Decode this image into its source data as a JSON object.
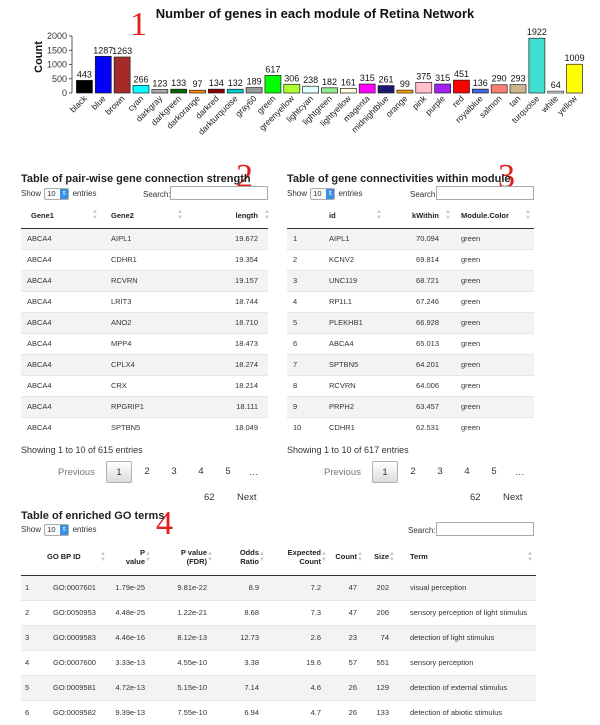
{
  "chart_data": {
    "type": "bar",
    "title": "Number of genes in each module of Retina Network",
    "ylabel": "Count",
    "xlabel": "",
    "ylim": [
      0,
      2000
    ],
    "yticks": [
      0,
      500,
      1000,
      1500,
      2000
    ],
    "categories": [
      "black",
      "blue",
      "brown",
      "cyan",
      "darkgray",
      "darkgreen",
      "darkorange",
      "darkred",
      "darkturquoise",
      "gray60",
      "green",
      "greenyellow",
      "lightcyan",
      "lightgreen",
      "lightyellow",
      "magenta",
      "midnightblue",
      "orange",
      "pink",
      "purple",
      "red",
      "royalblue",
      "salmon",
      "tan",
      "turquoise",
      "white",
      "yellow"
    ],
    "values": [
      443,
      1287,
      1263,
      266,
      123,
      133,
      97,
      134,
      132,
      189,
      617,
      306,
      238,
      182,
      161,
      315,
      261,
      99,
      375,
      315,
      451,
      136,
      290,
      293,
      1922,
      64,
      1009
    ],
    "colors": [
      "#000000",
      "#0000ff",
      "#a52a2a",
      "#00ffff",
      "#a9a9a9",
      "#006400",
      "#ff8c00",
      "#8b0000",
      "#00ced1",
      "#999999",
      "#00ff00",
      "#adff2f",
      "#e0ffff",
      "#90ee90",
      "#ffffe0",
      "#ff00ff",
      "#191970",
      "#ffa500",
      "#ffc0cb",
      "#a020f0",
      "#ff0000",
      "#4169e1",
      "#fa8072",
      "#d2b48c",
      "#40e0d0",
      "#ffffff",
      "#ffff00"
    ],
    "grid": false,
    "legend": "none"
  },
  "markers": [
    "1",
    "2",
    "3",
    "4"
  ],
  "common": {
    "show": "Show",
    "entries": "entries",
    "search": "Search:",
    "page_len": "10",
    "previous": "Previous",
    "next": "Next",
    "ellipsis": "…"
  },
  "t1": {
    "title": "Table of pair-wise gene connection strength",
    "columns": [
      "Gene1",
      "Gene2",
      "length"
    ],
    "rows": [
      [
        "ABCA4",
        "AIPL1",
        "19.672"
      ],
      [
        "ABCA4",
        "CDHR1",
        "19.354"
      ],
      [
        "ABCA4",
        "RCVRN",
        "19.157"
      ],
      [
        "ABCA4",
        "LRIT3",
        "18.744"
      ],
      [
        "ABCA4",
        "ANO2",
        "18.710"
      ],
      [
        "ABCA4",
        "MPP4",
        "18.473"
      ],
      [
        "ABCA4",
        "CPLX4",
        "18.274"
      ],
      [
        "ABCA4",
        "CRX",
        "18.214"
      ],
      [
        "ABCA4",
        "RPGRIP1",
        "18.111"
      ],
      [
        "ABCA4",
        "SPTBN5",
        "18.049"
      ]
    ],
    "info": "Showing 1 to 10 of 615 entries",
    "pages": [
      "1",
      "2",
      "3",
      "4",
      "5"
    ],
    "last_page": "62"
  },
  "t2": {
    "title": "Table of gene connectivities within module",
    "columns": [
      "",
      "id",
      "kWithin",
      "Module.Color"
    ],
    "rows": [
      [
        "1",
        "AIPL1",
        "70.094",
        "green"
      ],
      [
        "2",
        "KCNV2",
        "69.814",
        "green"
      ],
      [
        "3",
        "UNC119",
        "68.721",
        "green"
      ],
      [
        "4",
        "RP1L1",
        "67.246",
        "green"
      ],
      [
        "5",
        "PLEKHB1",
        "66.928",
        "green"
      ],
      [
        "6",
        "ABCA4",
        "65.013",
        "green"
      ],
      [
        "7",
        "SPTBN5",
        "64.201",
        "green"
      ],
      [
        "8",
        "RCVRN",
        "64.006",
        "green"
      ],
      [
        "9",
        "PRPH2",
        "63.457",
        "green"
      ],
      [
        "10",
        "CDHR1",
        "62.531",
        "green"
      ]
    ],
    "info": "Showing 1 to 10 of 617 entries",
    "pages": [
      "1",
      "2",
      "3",
      "4",
      "5"
    ],
    "last_page": "62"
  },
  "t3": {
    "title": "Table of enriched GO terms",
    "columns": [
      "",
      "GO BP ID",
      "P value",
      "P value (FDR)",
      "Odds Ratio",
      "Expected Count",
      "Count",
      "Size",
      "Term"
    ],
    "columns_display": [
      [
        "",
        ""
      ],
      [
        "GO BP ID",
        ""
      ],
      [
        "P",
        "value"
      ],
      [
        "P value",
        "(FDR)"
      ],
      [
        "Odds",
        "Ratio"
      ],
      [
        "Expected",
        "Count"
      ],
      [
        "Count",
        ""
      ],
      [
        "Size",
        ""
      ],
      [
        "Term",
        ""
      ]
    ],
    "rows": [
      [
        "1",
        "GO:0007601",
        "1.79e-25",
        "9.81e-22",
        "8.9",
        "7.2",
        "47",
        "202",
        "visual perception"
      ],
      [
        "2",
        "GO:0050953",
        "4.48e-25",
        "1.22e-21",
        "8.68",
        "7.3",
        "47",
        "206",
        "sensory perception of light stimulus"
      ],
      [
        "3",
        "GO:0009583",
        "4.46e-16",
        "8.12e-13",
        "12.73",
        "2.6",
        "23",
        "74",
        "detection of light stimulus"
      ],
      [
        "4",
        "GO:0007600",
        "3.33e-13",
        "4.55e-10",
        "3.38",
        "19.6",
        "57",
        "551",
        "sensory perception"
      ],
      [
        "5",
        "GO:0009581",
        "4.72e-13",
        "5.15e-10",
        "7.14",
        "4.6",
        "26",
        "129",
        "detection of external stimulus"
      ],
      [
        "6",
        "GO:0009582",
        "9.39e-13",
        "7.55e-10",
        "6.94",
        "4.7",
        "26",
        "133",
        "detection of abiotic stimulus"
      ]
    ]
  }
}
